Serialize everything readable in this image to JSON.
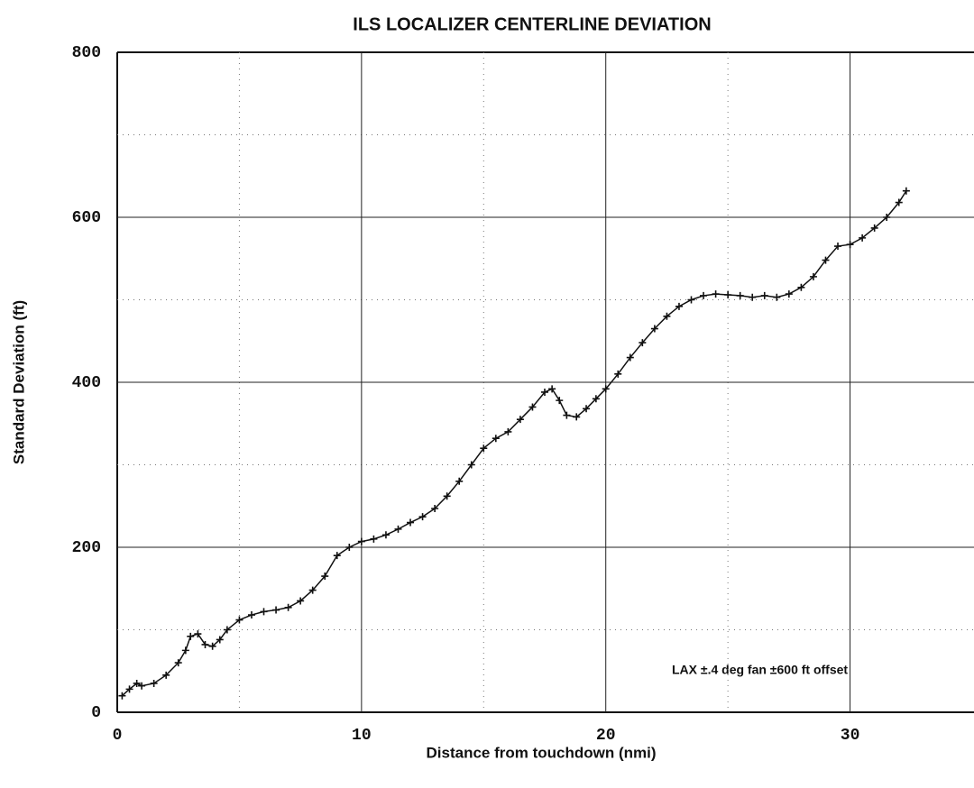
{
  "chart_data": {
    "type": "scatter",
    "title": "ILS LOCALIZER CENTERLINE DEVIATION",
    "xlabel": "Distance from touchdown (nmi)",
    "ylabel": "Standard Deviation (ft)",
    "annotation": "LAX  ±.4 deg fan  ±600 ft offset",
    "color": "#111111",
    "marker": "plus",
    "xlim": [
      0,
      35
    ],
    "ylim": [
      0,
      800
    ],
    "xticks": [
      0,
      10,
      20,
      30
    ],
    "yticks": [
      0,
      200,
      400,
      600,
      800
    ],
    "xminorticks": [
      5,
      15,
      25
    ],
    "yminorticks": [
      100,
      300,
      500,
      700
    ],
    "grid": true,
    "x": [
      0.2,
      0.5,
      0.8,
      1.0,
      1.5,
      2.0,
      2.5,
      2.8,
      3.0,
      3.3,
      3.6,
      3.9,
      4.2,
      4.5,
      5.0,
      5.5,
      6.0,
      6.5,
      7.0,
      7.5,
      8.0,
      8.5,
      9.0,
      9.5,
      10.0,
      10.5,
      11.0,
      11.5,
      12.0,
      12.5,
      13.0,
      13.5,
      14.0,
      14.5,
      15.0,
      15.5,
      16.0,
      16.5,
      17.0,
      17.5,
      17.8,
      18.1,
      18.4,
      18.8,
      19.2,
      19.6,
      20.0,
      20.5,
      21.0,
      21.5,
      22.0,
      22.5,
      23.0,
      23.5,
      24.0,
      24.5,
      25.0,
      25.5,
      26.0,
      26.5,
      27.0,
      27.5,
      28.0,
      28.5,
      29.0,
      29.5,
      30.0,
      30.5,
      31.0,
      31.5,
      32.0,
      32.3
    ],
    "values": [
      20,
      28,
      35,
      32,
      35,
      45,
      60,
      75,
      92,
      95,
      82,
      80,
      88,
      100,
      112,
      118,
      122,
      124,
      127,
      135,
      148,
      165,
      190,
      200,
      207,
      210,
      215,
      222,
      230,
      237,
      247,
      262,
      280,
      300,
      320,
      332,
      340,
      355,
      370,
      388,
      392,
      378,
      360,
      358,
      368,
      380,
      392,
      410,
      430,
      448,
      465,
      480,
      492,
      500,
      505,
      507,
      506,
      505,
      503,
      505,
      503,
      507,
      515,
      528,
      548,
      565,
      567,
      575,
      587,
      600,
      618,
      632
    ]
  }
}
